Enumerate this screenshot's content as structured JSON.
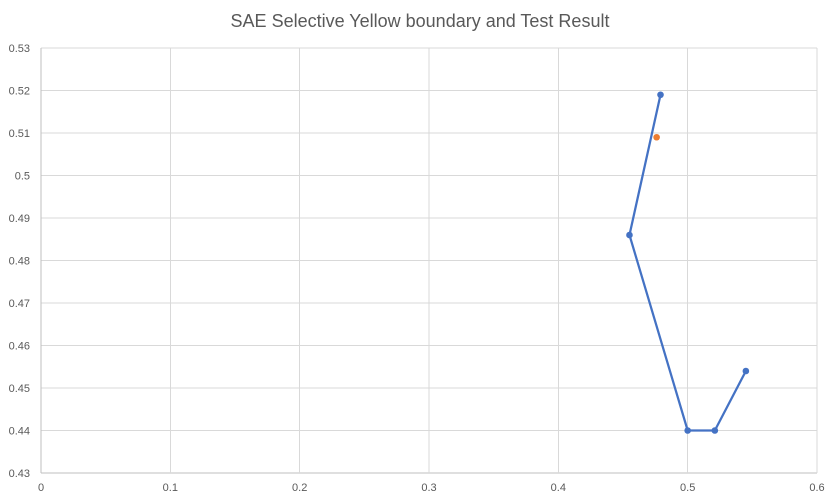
{
  "chart_data": {
    "type": "scatter",
    "title": "SAE Selective Yellow boundary and Test Result",
    "xlabel": "",
    "ylabel": "",
    "xlim": [
      0,
      0.6
    ],
    "ylim": [
      0.43,
      0.53
    ],
    "x_ticks": [
      "0",
      "0.1",
      "0.2",
      "0.3",
      "0.4",
      "0.5",
      "0.6"
    ],
    "y_ticks": [
      "0.43",
      "0.44",
      "0.45",
      "0.46",
      "0.47",
      "0.48",
      "0.49",
      "0.5",
      "0.51",
      "0.52",
      "0.53"
    ],
    "grid": true,
    "legend": "none",
    "series": [
      {
        "mode": "lines+markers",
        "color": "#4472c4",
        "points": [
          {
            "x": 0.479,
            "y": 0.519
          },
          {
            "x": 0.455,
            "y": 0.486
          },
          {
            "x": 0.5,
            "y": 0.44
          },
          {
            "x": 0.521,
            "y": 0.44
          },
          {
            "x": 0.545,
            "y": 0.454
          }
        ]
      },
      {
        "mode": "markers",
        "color": "#ed7d31",
        "points": [
          {
            "x": 0.476,
            "y": 0.509
          }
        ]
      }
    ]
  }
}
